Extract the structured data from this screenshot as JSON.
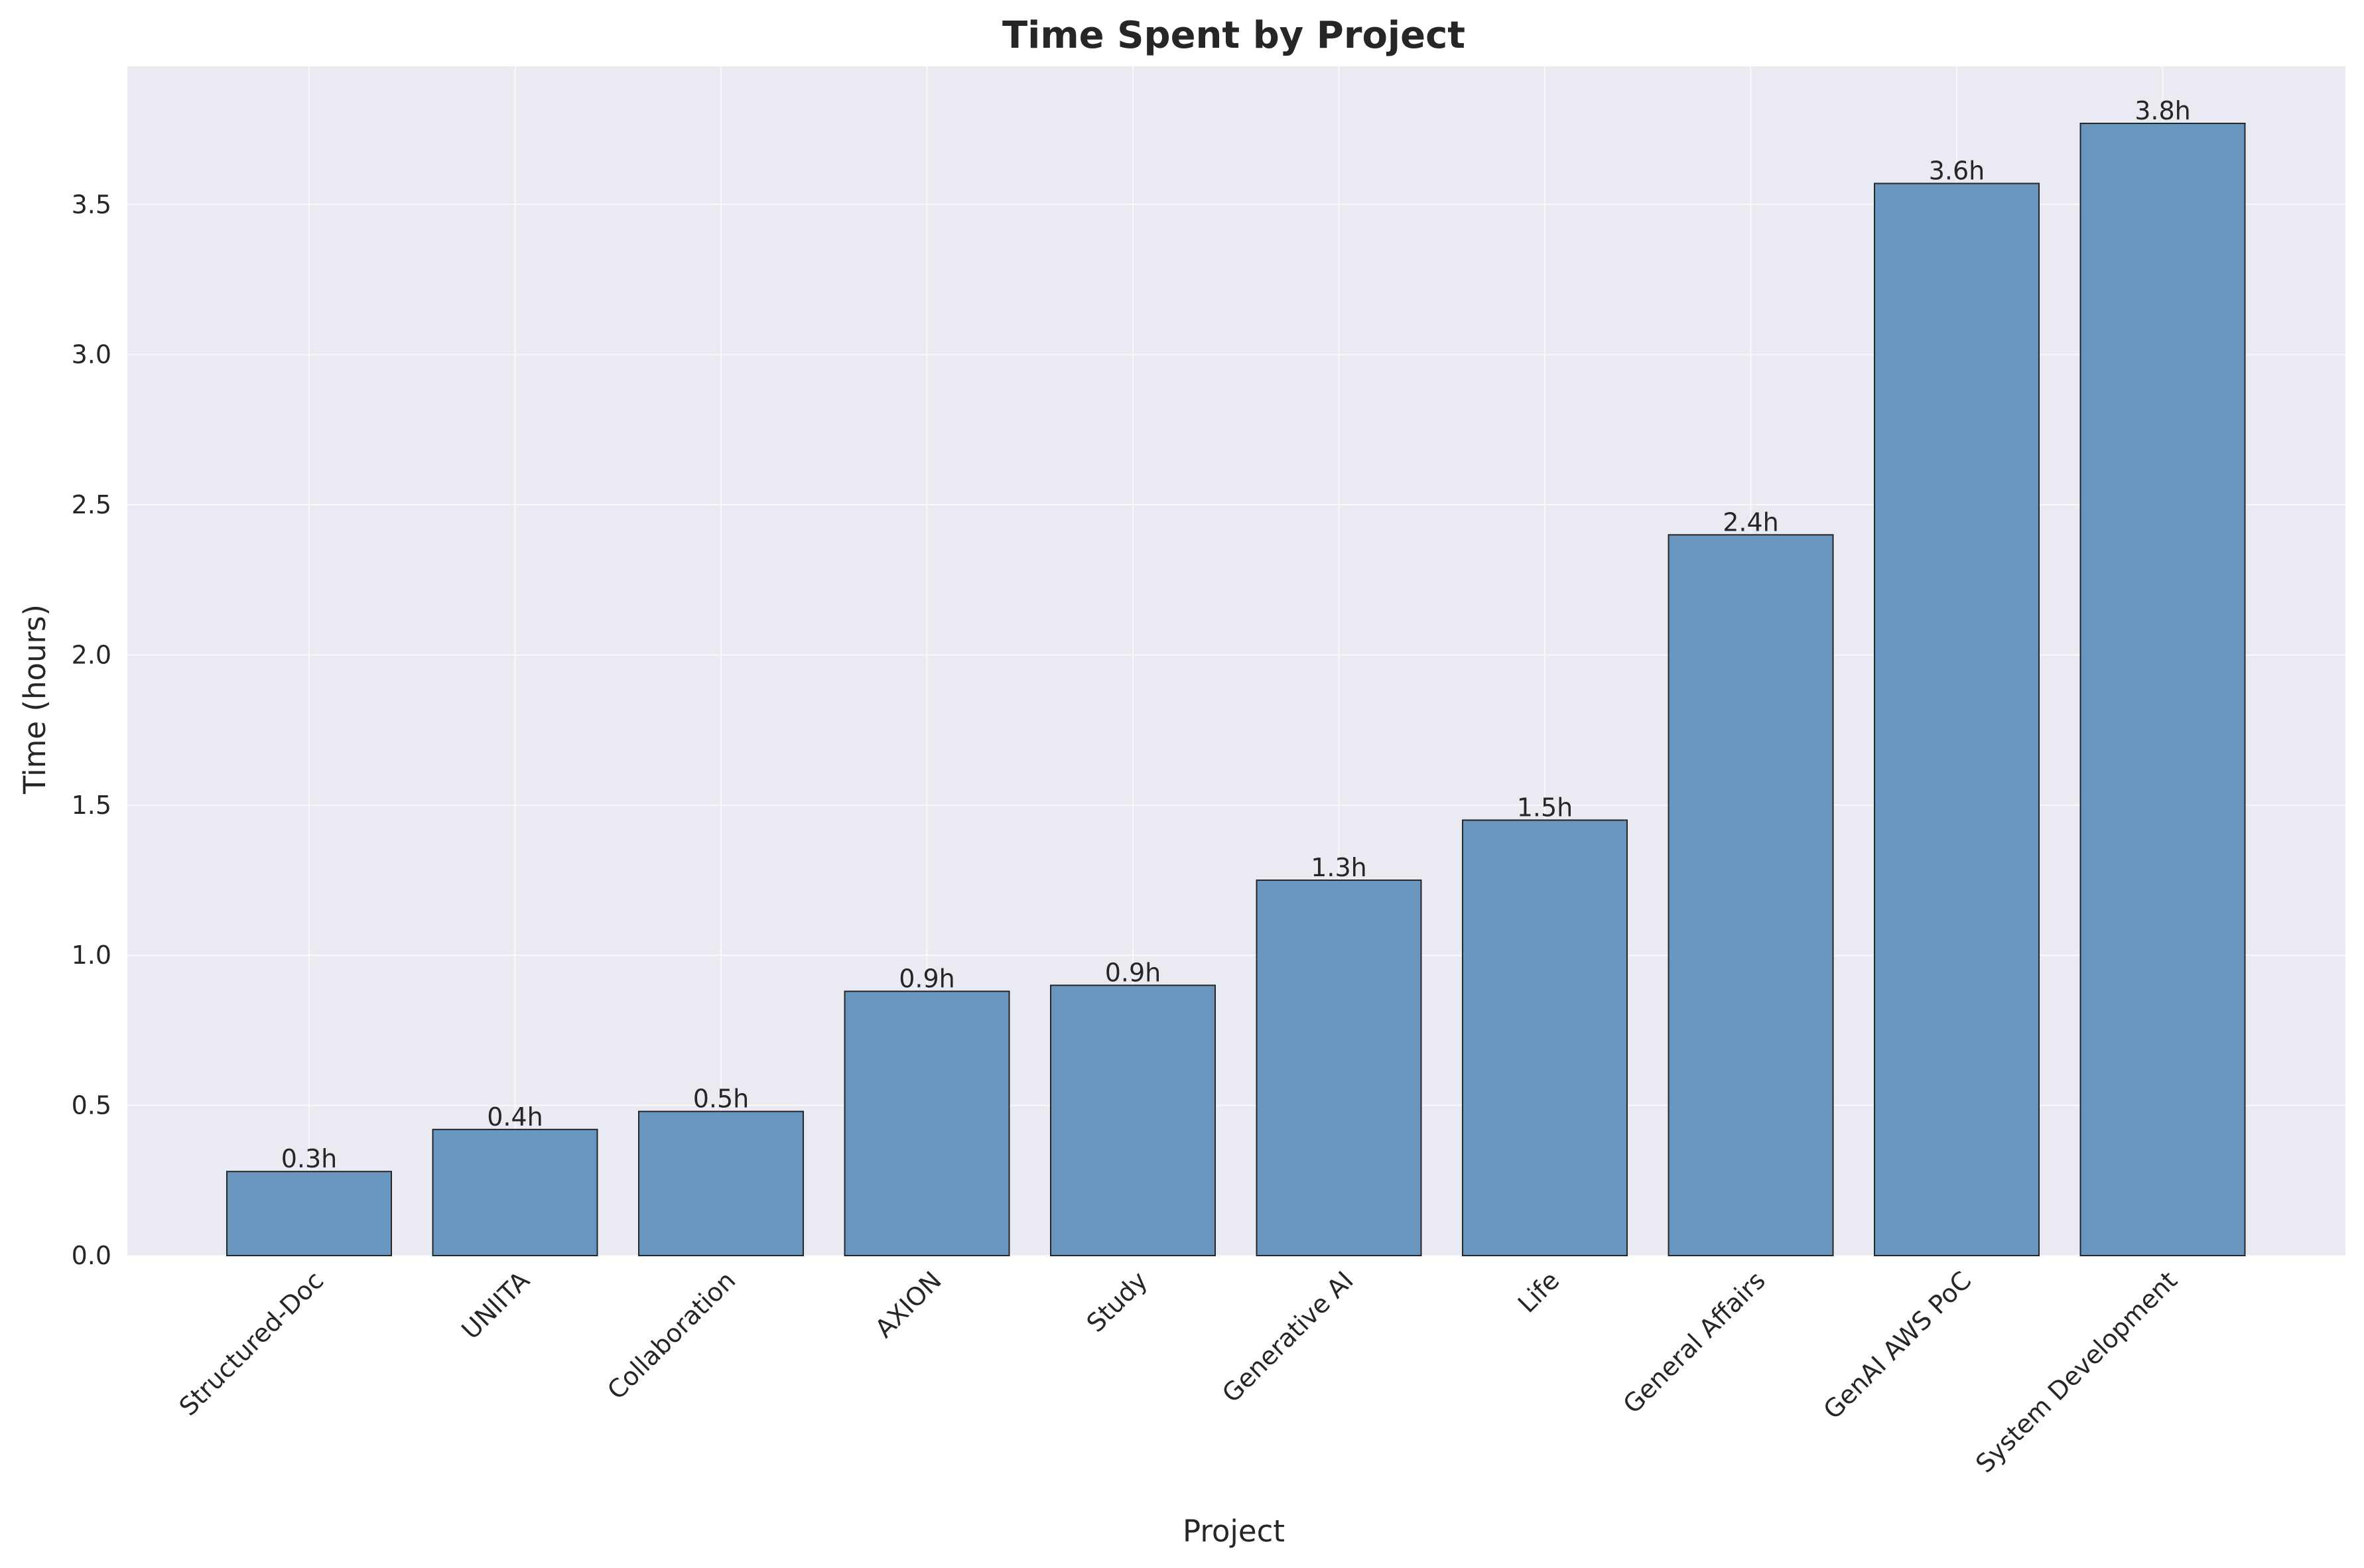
{
  "chart_data": {
    "type": "bar",
    "title": "Time Spent by Project",
    "xlabel": "Project",
    "ylabel": "Time (hours)",
    "categories": [
      "Structured-Doc",
      "UNIITA",
      "Collaboration",
      "AXION",
      "Study",
      "Generative AI",
      "Life",
      "General Affairs",
      "GenAI AWS PoC",
      "System Development"
    ],
    "values": [
      0.28,
      0.42,
      0.48,
      0.88,
      0.9,
      1.25,
      1.45,
      2.4,
      3.57,
      3.77
    ],
    "data_labels": [
      "0.3h",
      "0.4h",
      "0.5h",
      "0.9h",
      "0.9h",
      "1.3h",
      "1.5h",
      "2.4h",
      "3.6h",
      "3.8h"
    ],
    "ylim": [
      0,
      3.96
    ],
    "yticks": [
      0.0,
      0.5,
      1.0,
      1.5,
      2.0,
      2.5,
      3.0,
      3.5
    ],
    "ytick_labels": [
      "0.0",
      "0.5",
      "1.0",
      "1.5",
      "2.0",
      "2.5",
      "3.0",
      "3.5"
    ],
    "grid": true,
    "legend": "none",
    "colors": {
      "bar_fill": "#6896be",
      "bar_edge": "#262626",
      "plot_background": "#eaeaf2",
      "grid": "#f8f8fb",
      "text": "#262626"
    }
  }
}
